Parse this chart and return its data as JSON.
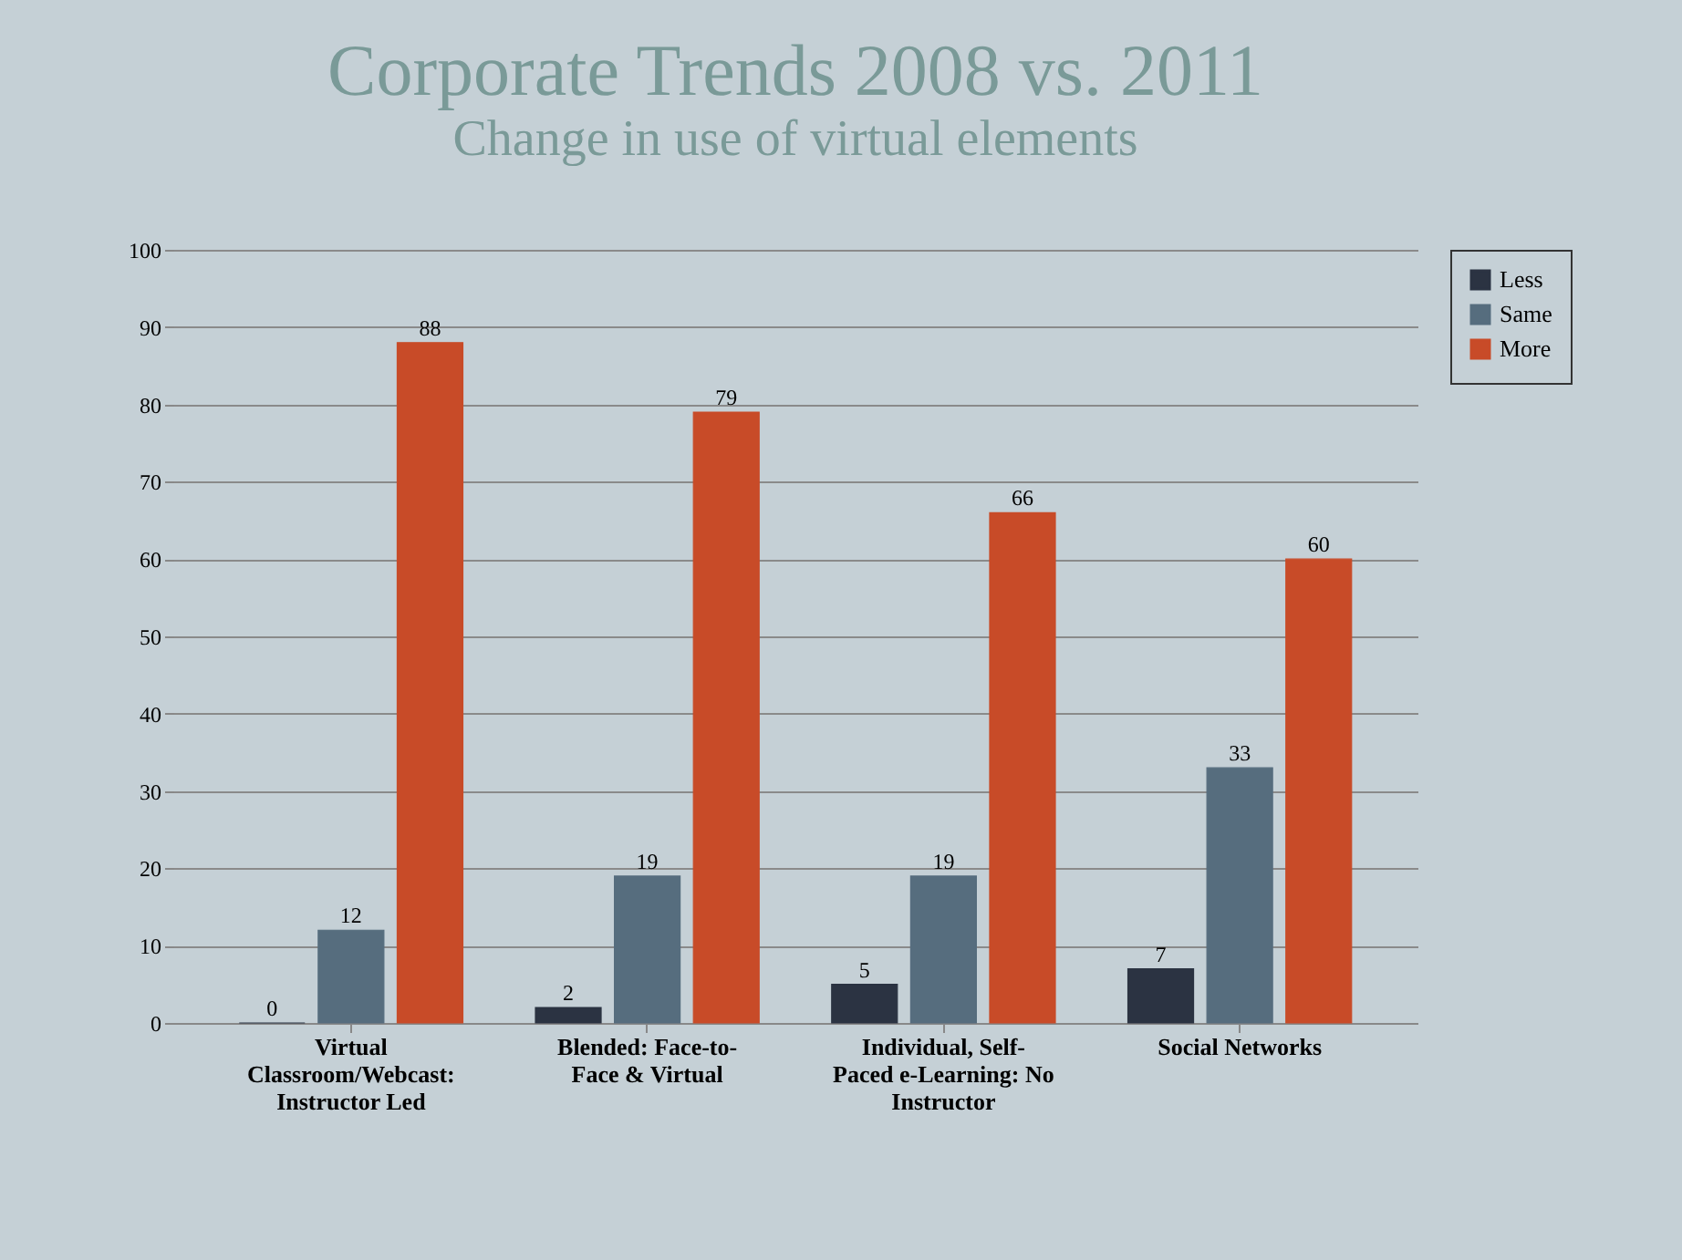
{
  "chart_data": {
    "type": "bar",
    "title": "Corporate Trends  2008 vs. 2011",
    "subtitle": "Change in use of virtual elements",
    "categories": [
      "Virtual Classroom/Webcast: Instructor Led",
      "Blended: Face-to-Face & Virtual",
      "Individual, Self-Paced e-Learning: No Instructor",
      "Social Networks"
    ],
    "series": [
      {
        "name": "Less",
        "color": "#2b3342",
        "values": [
          0,
          2,
          5,
          7
        ]
      },
      {
        "name": "Same",
        "color": "#566d7e",
        "values": [
          12,
          19,
          19,
          33
        ]
      },
      {
        "name": "More",
        "color": "#c84b28",
        "values": [
          88,
          79,
          66,
          60
        ]
      }
    ],
    "ylim": [
      0,
      100
    ],
    "yticks": [
      0,
      10,
      20,
      30,
      40,
      50,
      60,
      70,
      80,
      90,
      100
    ],
    "grid": "y",
    "legend": "right",
    "data_labels": true
  }
}
